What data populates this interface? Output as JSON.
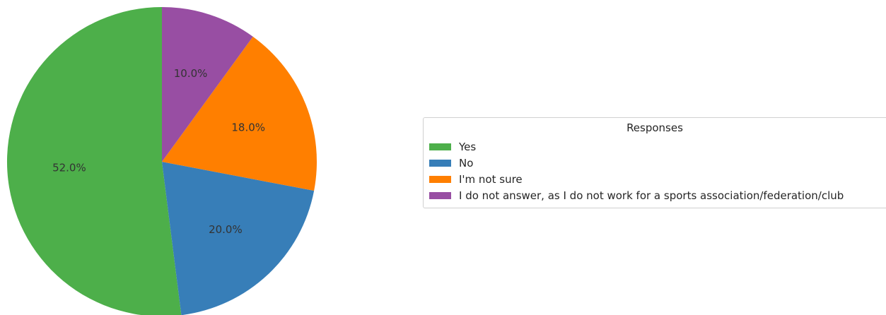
{
  "chart_data": {
    "type": "pie",
    "title": "",
    "legend_title": "Responses",
    "legend_position": "right",
    "start_angle_deg": 90,
    "direction": "counterclockwise",
    "slices": [
      {
        "label": "Yes",
        "value": 52.0,
        "pct_label": "52.0%",
        "color": "#4daf4a"
      },
      {
        "label": "No",
        "value": 20.0,
        "pct_label": "20.0%",
        "color": "#377eb8"
      },
      {
        "label": "I'm not sure",
        "value": 18.0,
        "pct_label": "18.0%",
        "color": "#ff7f00"
      },
      {
        "label": "I do not answer, as I do not work for a sports association/federation/club",
        "value": 10.0,
        "pct_label": "10.0%",
        "color": "#984ea3"
      }
    ]
  }
}
